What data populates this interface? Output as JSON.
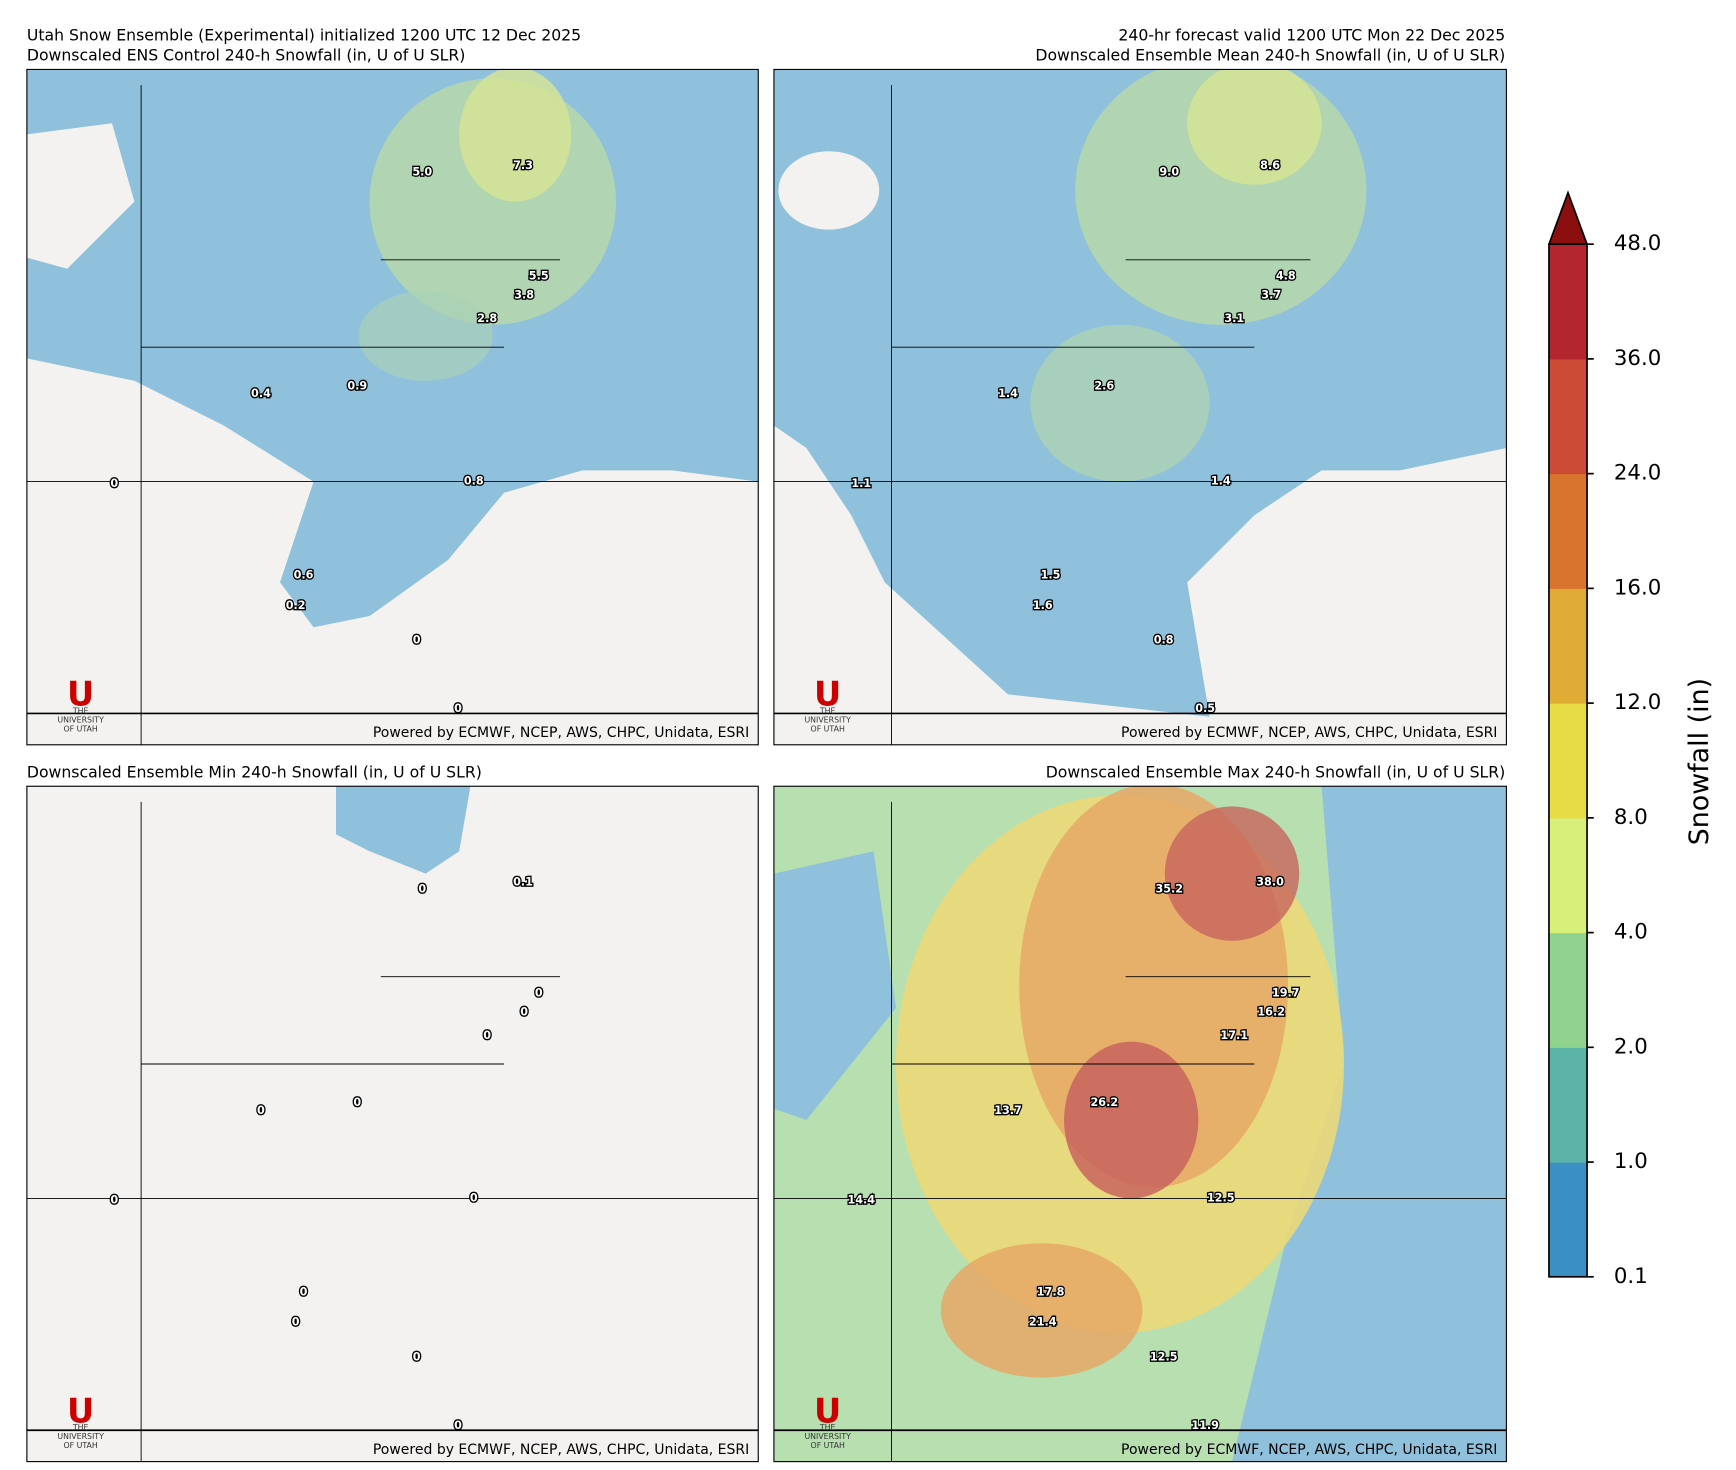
{
  "header": {
    "left_line_1": "Utah Snow Ensemble (Experimental) initialized 1200 UTC 12 Dec 2025",
    "right_line_1": "240-hr forecast valid 1200 UTC Mon 22 Dec 2025"
  },
  "panels": [
    {
      "title": "Downscaled ENS Control 240-h Snowfall (in, U of U SLR)",
      "credit": "Powered by ECMWF, NCEP, AWS, CHPC, Unidata, ESRI",
      "logo": {
        "letter": "U",
        "line_1": "THE",
        "line_2": "UNIVERSITY",
        "line_3": "OF UTAH"
      },
      "points": [
        "5.0",
        "7.3",
        "5.5",
        "3.8",
        "2.8",
        "0.9",
        "0.4",
        "0",
        "0.8",
        "0.6",
        "0.2",
        "0",
        "0"
      ]
    },
    {
      "title": "Downscaled Ensemble Mean 240-h Snowfall (in, U of U SLR)",
      "credit": "Powered by ECMWF, NCEP, AWS, CHPC, Unidata, ESRI",
      "logo": {
        "letter": "U",
        "line_1": "THE",
        "line_2": "UNIVERSITY",
        "line_3": "OF UTAH"
      },
      "points": [
        "9.0",
        "8.6",
        "4.8",
        "3.7",
        "3.1",
        "2.6",
        "1.4",
        "1.1",
        "1.4",
        "1.5",
        "1.6",
        "0.8",
        "0.5"
      ]
    },
    {
      "title": "Downscaled Ensemble Min 240-h Snowfall (in, U of U SLR)",
      "credit": "Powered by ECMWF, NCEP, AWS, CHPC, Unidata, ESRI",
      "logo": {
        "letter": "U",
        "line_1": "THE",
        "line_2": "UNIVERSITY",
        "line_3": "OF UTAH"
      },
      "points": [
        "0",
        "0.1",
        "0",
        "0",
        "0",
        "0",
        "0",
        "0",
        "0",
        "0",
        "0",
        "0",
        "0"
      ]
    },
    {
      "title": "Downscaled Ensemble Max 240-h Snowfall (in, U of U SLR)",
      "credit": "Powered by ECMWF, NCEP, AWS, CHPC, Unidata, ESRI",
      "logo": {
        "letter": "U",
        "line_1": "THE",
        "line_2": "UNIVERSITY",
        "line_3": "OF UTAH"
      },
      "points": [
        "35.2",
        "38.0",
        "19.7",
        "16.2",
        "17.1",
        "26.2",
        "13.7",
        "14.4",
        "12.5",
        "17.8",
        "21.4",
        "12.5",
        "11.9"
      ]
    }
  ],
  "colorbar": {
    "label": "Snowfall (in)",
    "ticks": [
      "0.1",
      "1.0",
      "2.0",
      "4.0",
      "8.0",
      "12.0",
      "16.0",
      "24.0",
      "36.0",
      "48.0"
    ],
    "colors": [
      "#3a8fc4",
      "#5cb3a8",
      "#8fd38f",
      "#d8ef7a",
      "#e8dc45",
      "#e0ac35",
      "#d9742f",
      "#cc4b34",
      "#b3262f"
    ],
    "extend_color": "#8b0f0f"
  }
}
